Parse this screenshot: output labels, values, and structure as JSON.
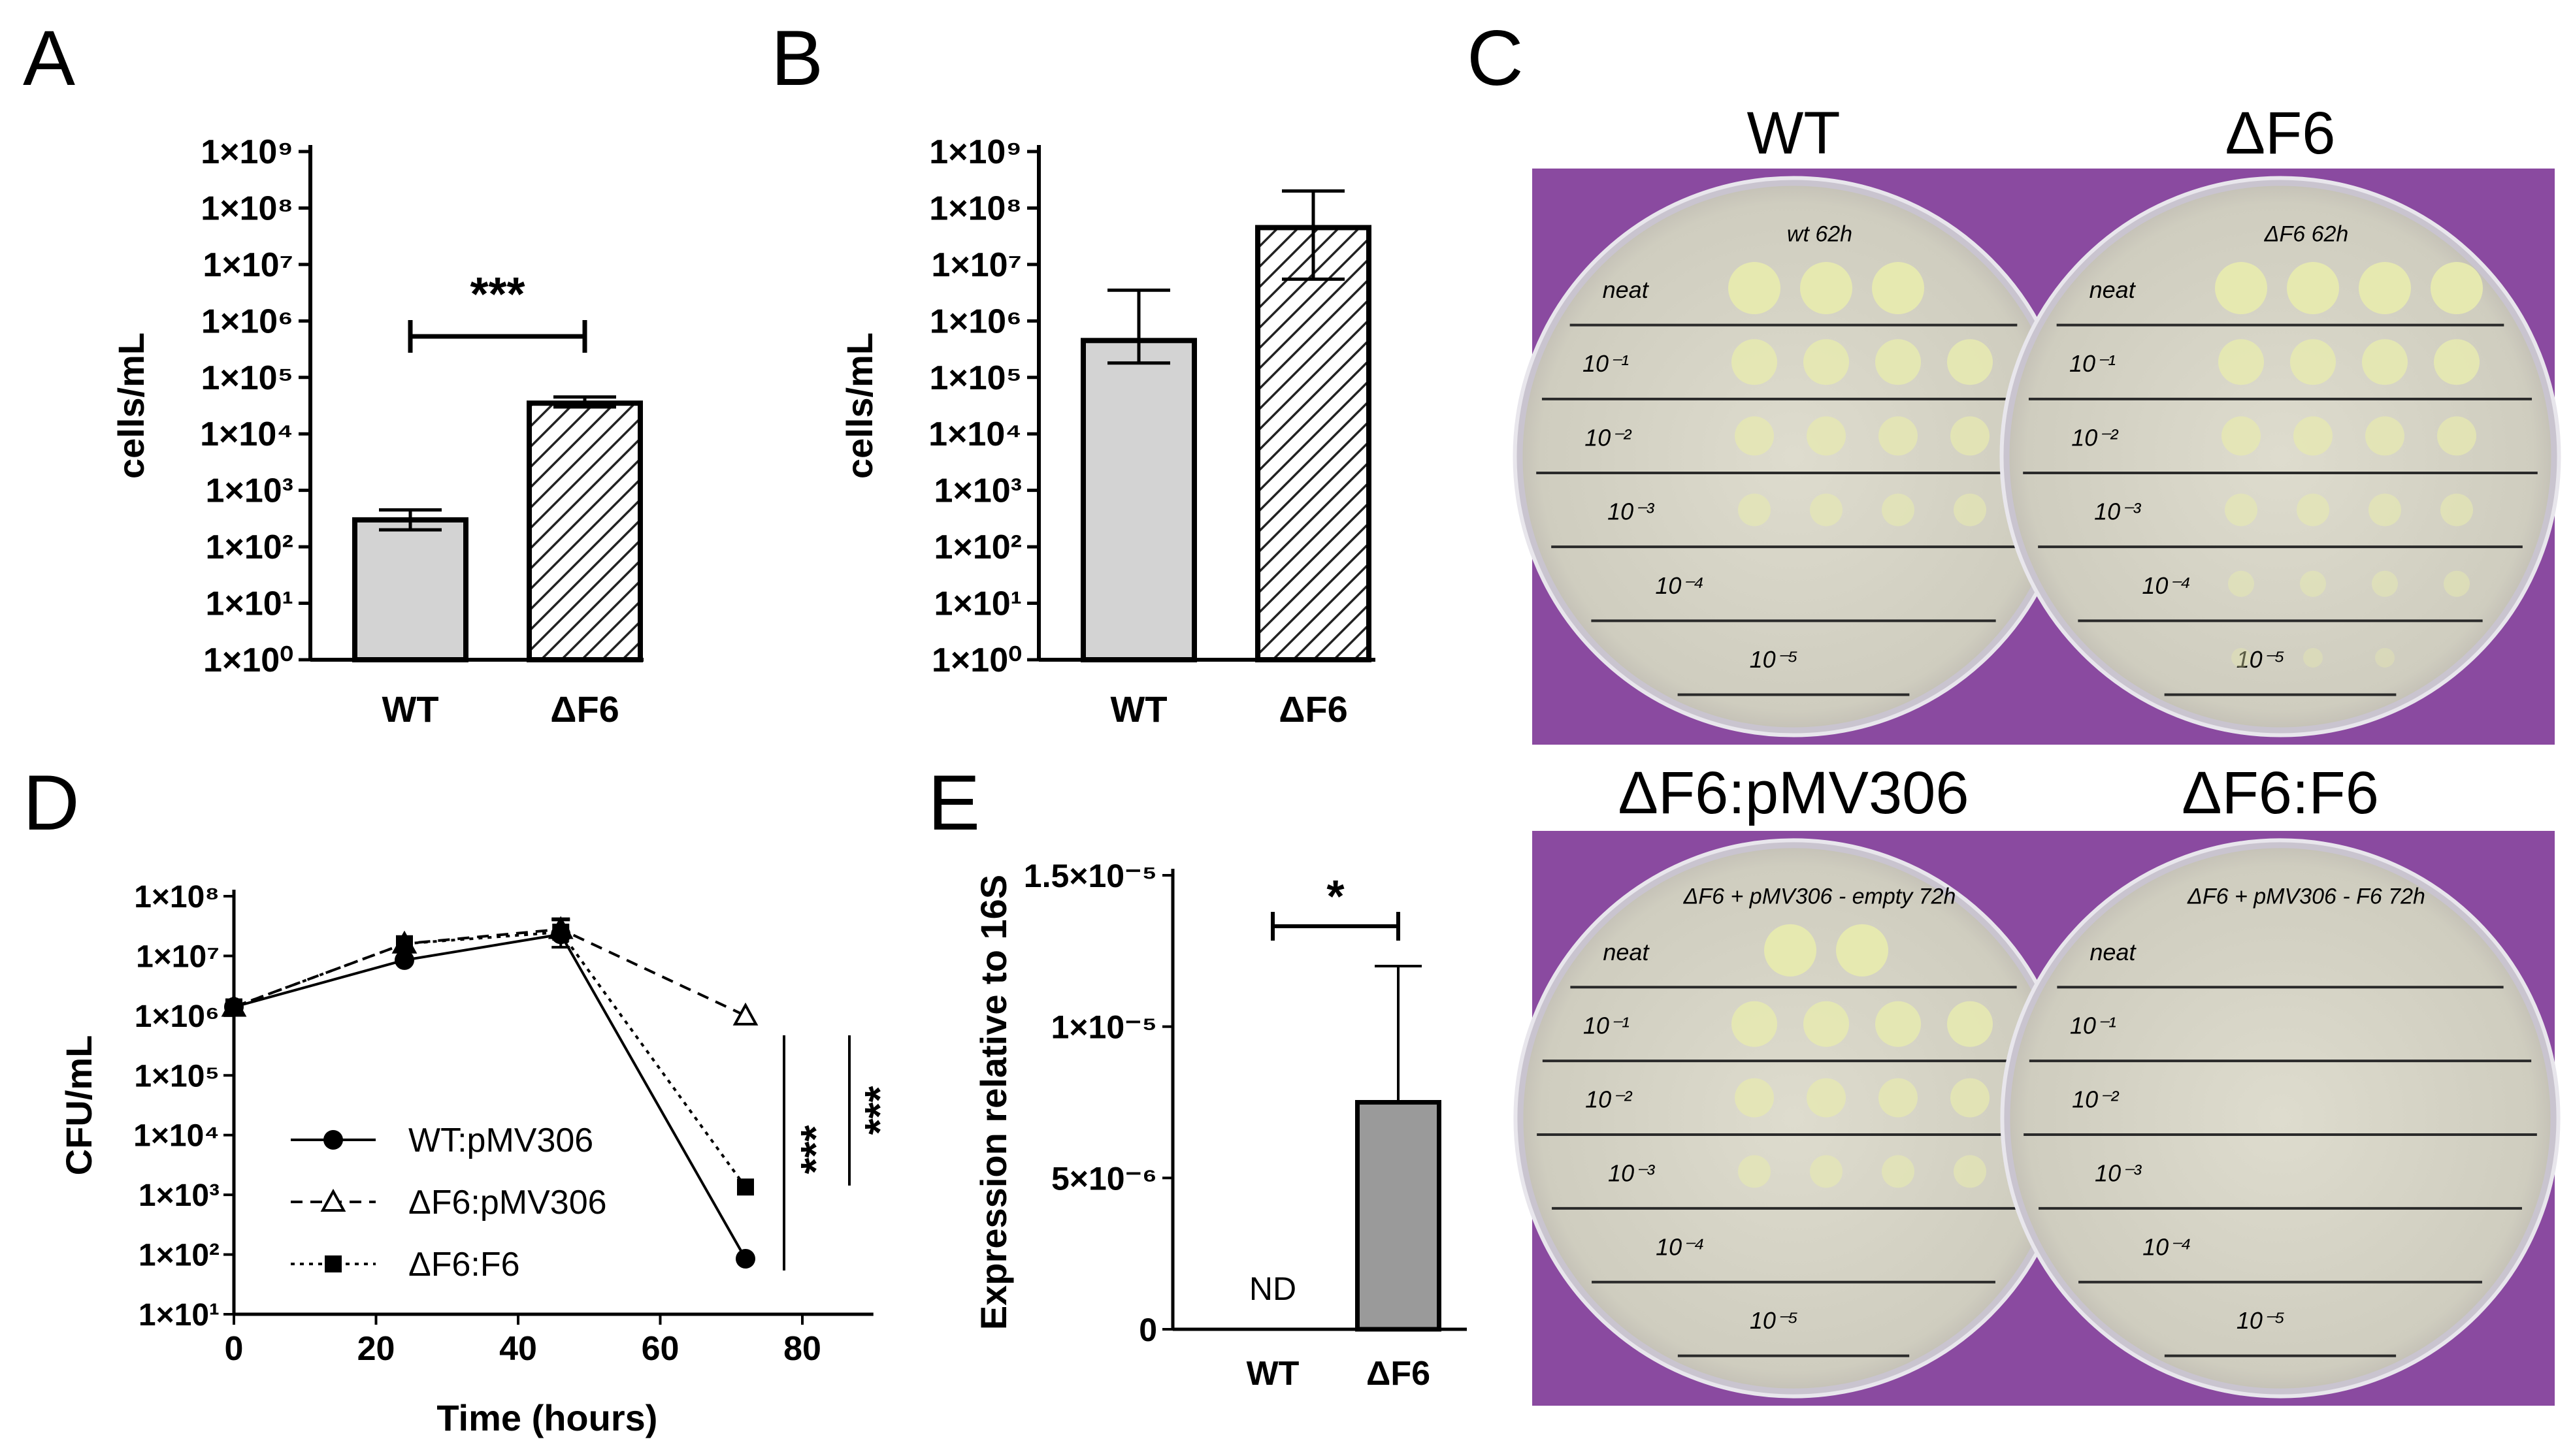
{
  "panels": {
    "a": "A",
    "b": "B",
    "c": "C",
    "d": "D",
    "e": "E"
  },
  "chart_data": [
    {
      "panel": "A",
      "type": "bar",
      "ylabel": "cells/mL",
      "yscale": "log",
      "ylim": [
        1,
        1000000000
      ],
      "yticks": [
        "1×10⁰",
        "1×10¹",
        "1×10²",
        "1×10³",
        "1×10⁴",
        "1×10⁵",
        "1×10⁶",
        "1×10⁷",
        "1×10⁸",
        "1×10⁹"
      ],
      "categories": [
        "WT",
        "ΔF6"
      ],
      "values": [
        300,
        35000
      ],
      "error_low": [
        200,
        30000
      ],
      "error_high": [
        450,
        45000
      ],
      "fill": [
        "#d3d3d3",
        "hatched"
      ],
      "significance": "***"
    },
    {
      "panel": "B",
      "type": "bar",
      "ylabel": "cells/mL",
      "yscale": "log",
      "ylim": [
        1,
        1000000000
      ],
      "yticks": [
        "1×10⁰",
        "1×10¹",
        "1×10²",
        "1×10³",
        "1×10⁴",
        "1×10⁵",
        "1×10⁶",
        "1×10⁷",
        "1×10⁸",
        "1×10⁹"
      ],
      "categories": [
        "WT",
        "ΔF6"
      ],
      "values": [
        450000,
        45000000
      ],
      "error_low": [
        180000,
        5500000
      ],
      "error_high": [
        3500000,
        200000000
      ],
      "fill": [
        "#d3d3d3",
        "hatched"
      ]
    },
    {
      "panel": "D",
      "type": "line",
      "xlabel": "Time (hours)",
      "ylabel": "CFU/mL",
      "yscale": "log",
      "xlim": [
        0,
        90
      ],
      "ylim": [
        10,
        100000000
      ],
      "xticks": [
        "0",
        "20",
        "40",
        "60",
        "80"
      ],
      "xtick_values": [
        0,
        20,
        40,
        60,
        80
      ],
      "yticks": [
        "1×10¹",
        "1×10²",
        "1×10³",
        "1×10⁴",
        "1×10⁵",
        "1×10⁶",
        "1×10⁷",
        "1×10⁸"
      ],
      "x": [
        0,
        24,
        46,
        72
      ],
      "series": [
        {
          "name": "WT:pMV306",
          "values": [
            1400000,
            8500000,
            23000000,
            85
          ],
          "marker": "circle",
          "line": "solid"
        },
        {
          "name": "ΔF6:pMV306",
          "values": [
            1400000,
            16000000,
            28000000,
            1000000
          ],
          "marker": "triangle",
          "line": "dashed"
        },
        {
          "name": "ΔF6:F6",
          "values": [
            1400000,
            16000000,
            25000000,
            1350
          ],
          "marker": "square",
          "line": "dotted"
        }
      ],
      "significance": [
        "***",
        "***"
      ]
    },
    {
      "panel": "E",
      "type": "bar",
      "ylabel": "Expression relative to 16S",
      "ylim": [
        0,
        1.5e-05
      ],
      "yticks": [
        "0",
        "5×10⁻⁶",
        "1×10⁻⁵",
        "1.5×10⁻⁵"
      ],
      "ytick_values": [
        0,
        5e-06,
        1e-05,
        1.5e-05
      ],
      "categories": [
        "WT",
        "ΔF6"
      ],
      "values": [
        0,
        7.5e-06
      ],
      "error_high": [
        null,
        1.2e-05
      ],
      "annotations": [
        "ND"
      ],
      "significance": "*"
    }
  ],
  "photos": {
    "top_labels": [
      "WT",
      "ΔF6"
    ],
    "bottom_labels": [
      "ΔF6:pMV306",
      "ΔF6:F6"
    ],
    "plate_wt_header": "wt 62h",
    "plate_df6_header": "ΔF6 62h",
    "plate_pmv_header": "ΔF6 + pMV306 - empty 72h",
    "plate_f6_header": "ΔF6 + pMV306 - F6 72h",
    "row_labels": [
      "neat",
      "10⁻¹",
      "10⁻²",
      "10⁻³",
      "10⁻⁴",
      "10⁻⁵"
    ],
    "spot_counts": {
      "wt": [
        3,
        4,
        4,
        4,
        0,
        0
      ],
      "df6": [
        4,
        4,
        4,
        4,
        4,
        3
      ],
      "pmv": [
        2,
        4,
        4,
        4,
        0,
        0
      ],
      "f6": [
        0,
        0,
        0,
        0,
        0,
        0
      ]
    },
    "background_color": "#8a4aa0",
    "agar_color": "#d9d8c9",
    "colony_color": "#e6e9b0"
  }
}
